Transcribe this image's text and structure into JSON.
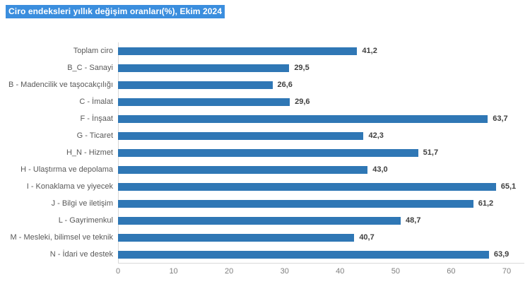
{
  "title": {
    "text": "Ciro endeksleri yıllık değişim oranları(%), Ekim 2024",
    "highlight_color": "#3b8ede",
    "text_color": "#ffffff"
  },
  "chart_data": {
    "type": "bar",
    "orientation": "horizontal",
    "title": "Ciro endeksleri yıllık değişim oranları(%), Ekim 2024",
    "categories": [
      "Toplam ciro",
      "B_C - Sanayi",
      "B - Madencilik ve taşocakçılığı",
      "C - İmalat",
      "F - İnşaat",
      "G - Ticaret",
      "H_N - Hizmet",
      "H - Ulaştırma ve depolama",
      "I - Konaklama ve yiyecek",
      "J - Bilgi ve iletişim",
      "L - Gayrimenkul",
      "M - Mesleki, bilimsel ve teknik",
      "N - İdari ve destek"
    ],
    "values": [
      41.2,
      29.5,
      26.6,
      29.6,
      63.7,
      42.3,
      51.7,
      43.0,
      65.1,
      61.2,
      48.7,
      40.7,
      63.9
    ],
    "value_labels": [
      "41,2",
      "29,5",
      "26,6",
      "29,6",
      "63,7",
      "42,3",
      "51,7",
      "43,0",
      "65,1",
      "61,2",
      "48,7",
      "40,7",
      "63,9"
    ],
    "xlabel": "",
    "ylabel": "",
    "xlim": [
      0,
      70
    ],
    "x_ticks": [
      0,
      10,
      20,
      30,
      40,
      50,
      60,
      70
    ],
    "grid": false,
    "legend": "none",
    "bar_color": "#2f77b5",
    "axis_line_color": "#d9d9d9",
    "category_label_color": "#595959",
    "value_label_color": "#3f3f3f",
    "tick_label_color": "#7f7f7f"
  }
}
